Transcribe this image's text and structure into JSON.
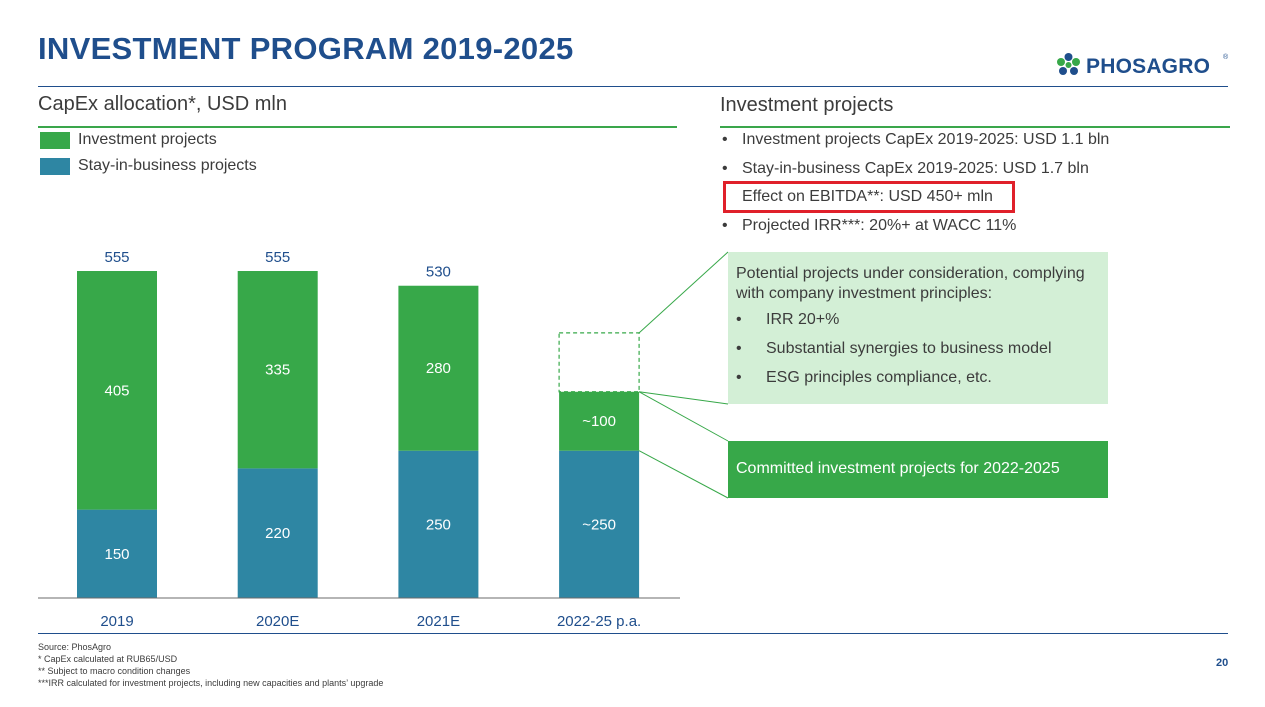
{
  "header": {
    "title": "INVESTMENT PROGRAM 2019-2025",
    "logo_text": "PHOSAGRO",
    "logo_tm": "®"
  },
  "left_section": {
    "heading": "CapEx allocation*, USD  mln",
    "legend": [
      {
        "label": "Investment projects",
        "color": "#37a849"
      },
      {
        "label": "Stay-in-business projects",
        "color": "#2e86a3"
      }
    ]
  },
  "chart_data": {
    "type": "bar",
    "stacked": true,
    "categories": [
      "2019",
      "2020E",
      "2021E",
      "2022-25 p.a."
    ],
    "series": [
      {
        "name": "Stay-in-business projects",
        "color": "#2e86a3",
        "values": [
          150,
          220,
          250,
          250
        ],
        "labels": [
          "150",
          "220",
          "250",
          "~250"
        ]
      },
      {
        "name": "Investment projects",
        "color": "#37a849",
        "values": [
          405,
          335,
          280,
          100
        ],
        "labels": [
          "405",
          "335",
          "280",
          "~100"
        ]
      }
    ],
    "totals": [
      555,
      555,
      530,
      null
    ],
    "total_labels": [
      "555",
      "555",
      "530",
      ""
    ],
    "potential_dashed": {
      "category": "2022-25 p.a.",
      "values": [
        100
      ]
    },
    "ylim": [
      0,
      555
    ],
    "grid": false
  },
  "right_section": {
    "heading": "Investment projects",
    "bullets": [
      "Investment projects CapEx 2019-2025: USD 1.1 bln",
      "Stay-in-business CapEx 2019-2025: USD 1.7 bln",
      "Effect on EBITDA**: USD 450+ mln",
      "Projected IRR***: 20%+ at WACC 11%"
    ],
    "highlight_index": 2,
    "potential_box": {
      "heading": "Potential projects under consideration, complying with company investment principles:",
      "items": [
        "IRR 20+%",
        "Substantial synergies to business model",
        "ESG principles compliance, etc."
      ],
      "bg_color": "#d3efd6"
    },
    "committed_box": {
      "text": "Committed investment projects for 2022-2025",
      "bg_color": "#37a849"
    }
  },
  "footer": {
    "notes": [
      "Source: PhosAgro",
      "* CapEx calculated at RUB65/USD",
      "** Subject to macro condition changes",
      "***IRR calculated for investment projects, including new capacities and plants’ upgrade"
    ],
    "page_number": "20"
  }
}
